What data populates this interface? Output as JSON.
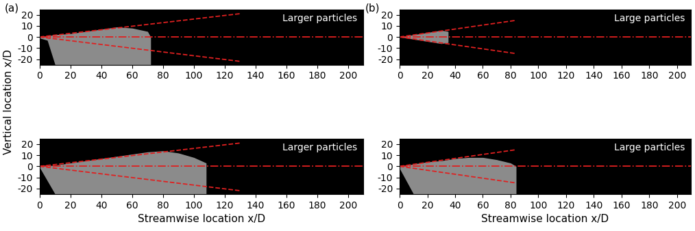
{
  "chart_data": [
    {
      "type": "line",
      "panel": "(a)",
      "y_label": "Vertical location x/D",
      "annotation": "Larger particles",
      "xlim": [
        0,
        210
      ],
      "ylim": [
        -25,
        25
      ],
      "xticks": [
        0,
        20,
        40,
        60,
        80,
        100,
        120,
        140,
        160,
        180,
        200
      ],
      "yticks": [
        -20,
        -10,
        0,
        10,
        20
      ],
      "lines": [
        {
          "x": [
            0,
            130
          ],
          "values": [
            0,
            21
          ],
          "color": "#e02020",
          "line_style": "dashed"
        },
        {
          "x": [
            0,
            130
          ],
          "values": [
            0,
            -22
          ],
          "color": "#e02020",
          "line_style": "dashed"
        },
        {
          "x": [
            0,
            210
          ],
          "values": [
            0,
            0
          ],
          "color": "#e02020",
          "line_style": "dashdot"
        }
      ],
      "particles": {
        "x": [
          0,
          5,
          10,
          20,
          30,
          40,
          50,
          60,
          70,
          72
        ],
        "upper": [
          0,
          1,
          2,
          3,
          5,
          7,
          9,
          8,
          5,
          0
        ],
        "lower": [
          -1,
          -3,
          -25,
          -25,
          -25,
          -25,
          -25,
          -25,
          -25,
          -25
        ],
        "color": "#ffffff"
      }
    },
    {
      "type": "line",
      "annotation": "Larger particles",
      "x_label": "Streamwise location x/D",
      "xlim": [
        0,
        210
      ],
      "ylim": [
        -25,
        25
      ],
      "xticks": [
        0,
        20,
        40,
        60,
        80,
        100,
        120,
        140,
        160,
        180,
        200
      ],
      "yticks": [
        -20,
        -10,
        0,
        10,
        20
      ],
      "lines": [
        {
          "x": [
            0,
            130
          ],
          "values": [
            0,
            21
          ],
          "color": "#e02020",
          "line_style": "dashed"
        },
        {
          "x": [
            0,
            130
          ],
          "values": [
            0,
            -22
          ],
          "color": "#e02020",
          "line_style": "dashed"
        },
        {
          "x": [
            0,
            210
          ],
          "values": [
            0,
            0
          ],
          "color": "#e02020",
          "line_style": "dashdot"
        }
      ],
      "particles": {
        "x": [
          0,
          10,
          20,
          30,
          40,
          50,
          60,
          70,
          80,
          90,
          100,
          108
        ],
        "upper": [
          0,
          1,
          3,
          5,
          7,
          9,
          11,
          13,
          14,
          12,
          8,
          3
        ],
        "lower": [
          -1,
          -25,
          -25,
          -25,
          -25,
          -25,
          -25,
          -25,
          -25,
          -25,
          -25,
          -25
        ],
        "color": "#ffffff"
      }
    },
    {
      "type": "line",
      "panel": "(b)",
      "annotation": "Large particles",
      "xlim": [
        0,
        210
      ],
      "ylim": [
        -25,
        25
      ],
      "xticks": [
        0,
        20,
        40,
        60,
        80,
        100,
        120,
        140,
        160,
        180,
        200
      ],
      "yticks": [
        -20,
        -10,
        0,
        10,
        20
      ],
      "lines": [
        {
          "x": [
            0,
            84
          ],
          "values": [
            0,
            15
          ],
          "color": "#e02020",
          "line_style": "dashed"
        },
        {
          "x": [
            0,
            84
          ],
          "values": [
            0,
            -15
          ],
          "color": "#e02020",
          "line_style": "dashed"
        },
        {
          "x": [
            0,
            210
          ],
          "values": [
            0,
            0
          ],
          "color": "#e02020",
          "line_style": "dashdot"
        }
      ],
      "particles": {
        "x": [
          0,
          5,
          10,
          15,
          20,
          25,
          30,
          35
        ],
        "upper": [
          0,
          1,
          2,
          3,
          4,
          5,
          6,
          5
        ],
        "lower": [
          0,
          -1,
          -2,
          -3,
          -4,
          -5,
          -6,
          -5
        ],
        "color": "#ffffff"
      }
    },
    {
      "type": "line",
      "annotation": "Large particles",
      "x_label": "Streamwise location x/D",
      "xlim": [
        0,
        210
      ],
      "ylim": [
        -25,
        25
      ],
      "xticks": [
        0,
        20,
        40,
        60,
        80,
        100,
        120,
        140,
        160,
        180,
        200
      ],
      "yticks": [
        -20,
        -10,
        0,
        10,
        20
      ],
      "lines": [
        {
          "x": [
            0,
            84
          ],
          "values": [
            0,
            15
          ],
          "color": "#e02020",
          "line_style": "dashed"
        },
        {
          "x": [
            0,
            84
          ],
          "values": [
            0,
            -15
          ],
          "color": "#e02020",
          "line_style": "dashed"
        },
        {
          "x": [
            0,
            210
          ],
          "values": [
            0,
            0
          ],
          "color": "#e02020",
          "line_style": "dashdot"
        }
      ],
      "particles": {
        "x": [
          0,
          10,
          20,
          30,
          40,
          50,
          60,
          70,
          80,
          84
        ],
        "upper": [
          0,
          2,
          4,
          5,
          7,
          8,
          8,
          6,
          3,
          0
        ],
        "lower": [
          -2,
          -25,
          -25,
          -25,
          -25,
          -25,
          -25,
          -25,
          -25,
          -25
        ],
        "color": "#ffffff"
      }
    }
  ]
}
